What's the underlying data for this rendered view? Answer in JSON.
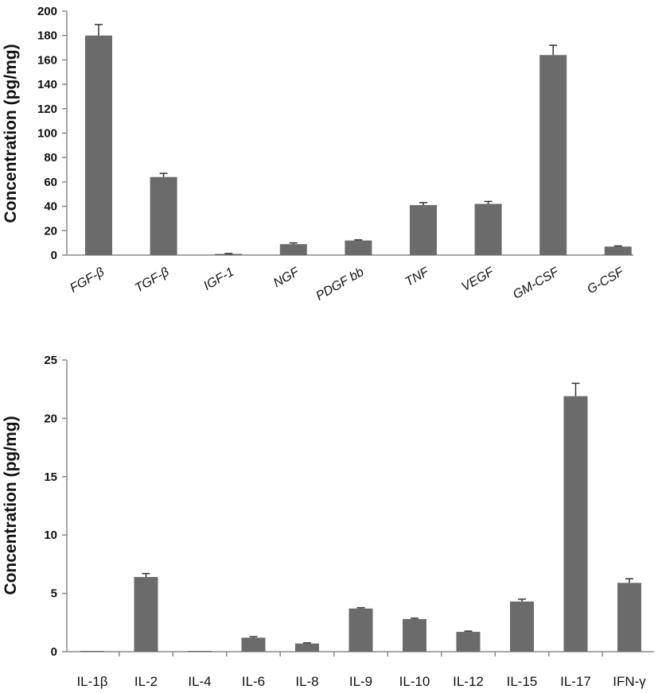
{
  "chart_data": [
    {
      "type": "bar",
      "ylabel": "Concentration (pg/mg)",
      "ylim": [
        0,
        200
      ],
      "yticks": [
        "0",
        "20",
        "40",
        "60",
        "80",
        "100",
        "120",
        "140",
        "160",
        "180",
        "200"
      ],
      "categories": [
        "FGF-β",
        "TGF-β",
        "IGF-1",
        "NGF",
        "PDGF bb",
        "TNF",
        "VEGF",
        "GM-CSF",
        "G-CSF"
      ],
      "values": [
        180,
        64,
        1,
        9,
        12,
        41,
        42,
        164,
        7
      ],
      "errors": [
        9,
        3,
        0.3,
        1,
        0.5,
        2,
        2,
        8,
        0.5
      ],
      "bar_color": "#6b6b6b",
      "grid": false
    },
    {
      "type": "bar",
      "ylabel": "Concentration (pg/mg)",
      "ylim": [
        0,
        25
      ],
      "yticks": [
        "0",
        "5",
        "10",
        "15",
        "20",
        "25"
      ],
      "categories": [
        "IL-1β",
        "IL-2",
        "IL-4",
        "IL-6",
        "IL-8",
        "IL-9",
        "IL-10",
        "IL-12",
        "IL-15",
        "IL-17",
        "IFN-γ"
      ],
      "values": [
        0,
        6.4,
        0,
        1.2,
        0.7,
        3.7,
        2.8,
        1.7,
        4.3,
        21.9,
        5.9
      ],
      "errors": [
        0,
        0.3,
        0,
        0.08,
        0.05,
        0.07,
        0.07,
        0.06,
        0.2,
        1.1,
        0.35
      ],
      "bar_color": "#6b6b6b",
      "grid": false
    }
  ]
}
